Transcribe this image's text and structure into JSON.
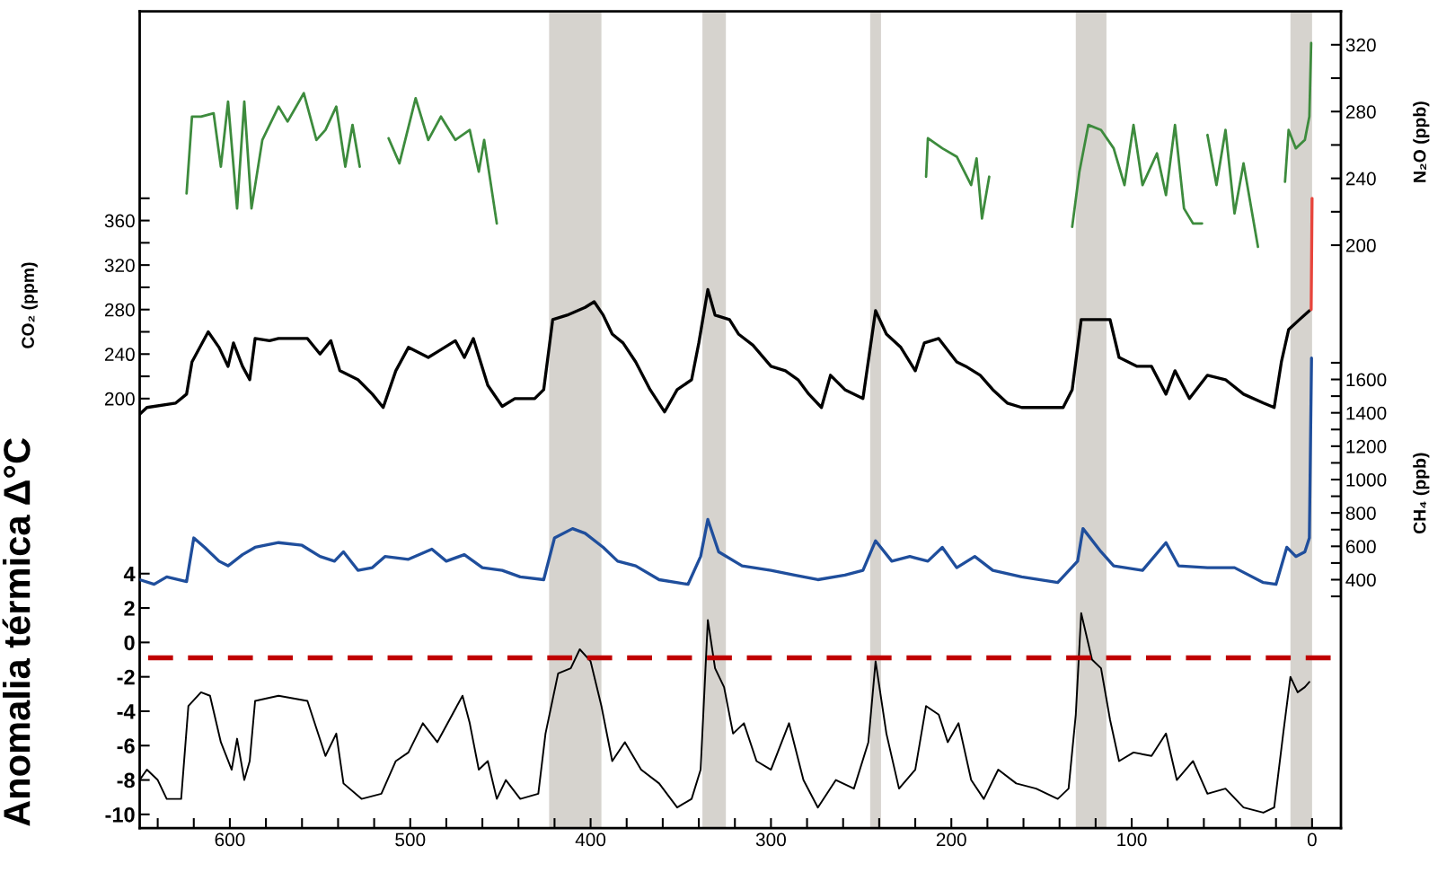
{
  "chart_data": [
    {
      "type": "line",
      "ylabel": "CO₂ (ppm)",
      "y2label": "N₂O (ppb)",
      "y3label": "CH₄ (ppb)",
      "xlim": [
        650,
        -16
      ],
      "xticks": [
        {
          "value": 640,
          "label": null
        },
        {
          "value": 620,
          "label": null
        },
        600,
        {
          "value": 580,
          "label": null
        },
        {
          "value": 560,
          "label": null
        },
        {
          "value": 540,
          "label": null
        },
        {
          "value": 520,
          "label": null
        },
        500,
        {
          "value": 480,
          "label": null
        },
        {
          "value": 460,
          "label": null
        },
        {
          "value": 440,
          "label": null
        },
        {
          "value": 420,
          "label": null
        },
        400,
        {
          "value": 380,
          "label": null
        },
        {
          "value": 360,
          "label": null
        },
        {
          "value": 340,
          "label": null
        },
        {
          "value": 320,
          "label": null
        },
        300,
        {
          "value": 280,
          "label": null
        },
        {
          "value": 260,
          "label": null
        },
        {
          "value": 240,
          "label": null
        },
        {
          "value": 220,
          "label": null
        },
        200,
        {
          "value": 180,
          "label": null
        },
        {
          "value": 160,
          "label": null
        },
        {
          "value": 140,
          "label": null
        },
        {
          "value": 120,
          "label": null
        },
        100,
        {
          "value": 80,
          "label": null
        },
        {
          "value": 60,
          "label": null
        },
        {
          "value": 40,
          "label": null
        },
        {
          "value": 20,
          "label": null
        },
        0
      ],
      "ylim": [
        -186,
        548
      ],
      "yticks": [
        {
          "value": 380,
          "label": null
        },
        360,
        {
          "value": 340,
          "label": null
        },
        320,
        {
          "value": 300,
          "label": null
        },
        280,
        {
          "value": 260,
          "label": null
        },
        240,
        {
          "value": 220,
          "label": null
        },
        200
      ],
      "y2lim": [
        -149,
        340
      ],
      "y2ticks": [
        320,
        {
          "value": 300,
          "label": null
        },
        280,
        {
          "value": 260,
          "label": null
        },
        240,
        {
          "value": 220,
          "label": null
        },
        200
      ],
      "y3lim": [
        -1089,
        3806
      ],
      "y3ticks": [
        {
          "value": 1700,
          "label": null
        },
        1600,
        {
          "value": 1500,
          "label": null
        },
        1400,
        {
          "value": 1300,
          "label": null
        },
        1200,
        {
          "value": 1100,
          "label": null
        },
        1000,
        {
          "value": 900,
          "label": null
        },
        800,
        {
          "value": 700,
          "label": null
        },
        600,
        {
          "value": 500,
          "label": null
        },
        400,
        {
          "value": 300,
          "label": null
        }
      ],
      "grid": false,
      "bands": [
        {
          "axis": "x",
          "from": 423,
          "to": 394,
          "color": "#d6d3ce"
        },
        {
          "axis": "x",
          "from": 338,
          "to": 325,
          "color": "#d6d3ce"
        },
        {
          "axis": "x",
          "from": 245,
          "to": 239,
          "color": "#d6d3ce"
        },
        {
          "axis": "x",
          "from": 131,
          "to": 114,
          "color": "#d6d3ce"
        },
        {
          "axis": "x",
          "from": 12,
          "to": 0,
          "color": "#d6d3ce"
        }
      ],
      "series": [
        {
          "axis": "y2",
          "color": "#3d8b3d",
          "x": [
            624,
            621,
            616,
            609,
            605,
            601,
            596,
            592,
            588,
            582,
            573,
            568,
            559,
            552,
            547,
            541,
            536,
            532,
            528,
            520,
            512,
            506,
            497,
            490,
            483,
            475,
            467,
            462,
            459,
            452,
            300,
            214,
            213,
            205,
            197,
            189,
            186,
            183,
            179,
            150,
            133,
            129,
            124,
            117,
            110,
            104,
            99,
            94,
            86,
            81,
            76,
            71,
            66,
            61,
            60,
            58,
            53,
            48,
            43,
            38,
            30,
            22,
            15,
            13,
            9,
            4,
            1.5,
            0.5
          ],
          "values": [
            231,
            277,
            277,
            279,
            247,
            286,
            222,
            286,
            222,
            263,
            283,
            274,
            291,
            263,
            269,
            283,
            247,
            272,
            247,
            null,
            264,
            249,
            288,
            263,
            277,
            263,
            269,
            244,
            263,
            213,
            null,
            241,
            264,
            258,
            253,
            236,
            252,
            216,
            241,
            null,
            211,
            244,
            272,
            269,
            258,
            236,
            272,
            236,
            255,
            230,
            272,
            222,
            213,
            213,
            null,
            266,
            236,
            269,
            219,
            249,
            199,
            null,
            238,
            269,
            258,
            263,
            277,
            321
          ]
        },
        {
          "axis": "y",
          "color": "#000000",
          "x": [
            650,
            646,
            630,
            624,
            621,
            612,
            606,
            601,
            598,
            593,
            589,
            586,
            578,
            573,
            557,
            550,
            544,
            539,
            529,
            521,
            515,
            508,
            501,
            490,
            485,
            475,
            470,
            465,
            457,
            449,
            442,
            431,
            426,
            421,
            413,
            403,
            398,
            393,
            388,
            382,
            375,
            367,
            359,
            352,
            344,
            340,
            335,
            331,
            323,
            318,
            310,
            300,
            292,
            285,
            279,
            272,
            267,
            259,
            249,
            242,
            236,
            228,
            220,
            215,
            207,
            197,
            192,
            184,
            177,
            169,
            161,
            151,
            138,
            133,
            128,
            120,
            112,
            107,
            97,
            89,
            81,
            76,
            68,
            58,
            48,
            38,
            27,
            21,
            17,
            13,
            7,
            1.5
          ],
          "values": [
            186,
            192,
            196,
            204,
            233,
            260,
            246,
            229,
            250,
            229,
            217,
            254,
            252,
            254,
            254,
            240,
            252,
            225,
            217,
            204,
            192,
            225,
            246,
            237,
            242,
            252,
            237,
            254,
            212,
            193,
            200,
            200,
            208,
            271,
            275,
            282,
            287,
            275,
            258,
            250,
            233,
            208,
            188,
            208,
            217,
            250,
            298,
            275,
            271,
            258,
            248,
            229,
            225,
            217,
            204,
            192,
            221,
            208,
            200,
            279,
            258,
            246,
            225,
            250,
            254,
            233,
            229,
            221,
            208,
            196,
            192,
            192,
            192,
            208,
            271,
            271,
            271,
            237,
            229,
            229,
            204,
            225,
            200,
            221,
            217,
            204,
            196,
            192,
            233,
            262,
            271,
            279
          ]
        },
        {
          "axis": "y",
          "color": "#e8453c",
          "x": [
            0.5,
            0
          ],
          "values": [
            280,
            380
          ]
        },
        {
          "axis": "y3",
          "color": "#1f4e9c",
          "x": [
            650,
            642,
            635,
            624,
            620,
            614,
            606,
            601,
            593,
            586,
            573,
            560,
            550,
            542,
            537,
            529,
            521,
            514,
            501,
            488,
            480,
            470,
            460,
            449,
            439,
            426,
            420,
            410,
            403,
            393,
            385,
            375,
            362,
            346,
            339,
            335,
            329,
            316,
            300,
            287,
            274,
            259,
            249,
            242,
            233,
            223,
            213,
            205,
            197,
            187,
            177,
            161,
            141,
            130,
            127,
            117,
            110,
            94,
            81,
            74,
            58,
            43,
            27,
            20,
            14,
            9,
            4,
            1.5,
            0.3
          ],
          "values": [
            400,
            372,
            417,
            389,
            650,
            594,
            511,
            483,
            550,
            594,
            622,
            606,
            539,
            511,
            567,
            456,
            472,
            539,
            522,
            583,
            511,
            550,
            472,
            456,
            417,
            400,
            650,
            706,
            678,
            594,
            511,
            483,
            400,
            372,
            539,
            761,
            567,
            483,
            456,
            428,
            400,
            428,
            456,
            633,
            511,
            539,
            511,
            594,
            472,
            539,
            456,
            417,
            383,
            511,
            706,
            567,
            483,
            456,
            622,
            483,
            472,
            472,
            383,
            372,
            594,
            539,
            567,
            650,
            1728
          ]
        }
      ]
    },
    {
      "type": "line",
      "ylabel": "Anomalia térmica Δ°C",
      "tick_labels": "y",
      "grid": false,
      "xlim": [
        650,
        -16
      ],
      "ylim": [
        -10.8,
        36.7
      ],
      "yticks": [
        4,
        2,
        0,
        -2,
        -4,
        -6,
        -8,
        -10
      ],
      "ref_lines": [
        {
          "axis": "y",
          "value": -0.9,
          "color": "#c00000",
          "line_style": "dashed"
        }
      ],
      "series": [
        {
          "color": "#000000",
          "x": [
            650,
            646,
            640,
            635,
            627,
            623,
            616,
            611,
            605,
            599,
            596,
            592,
            589,
            586,
            573,
            557,
            547,
            541,
            537,
            527,
            516,
            508,
            501,
            493,
            485,
            471,
            467,
            462,
            457,
            452,
            447,
            439,
            429,
            425,
            418,
            411,
            406,
            400,
            394,
            388,
            381,
            372,
            362,
            352,
            344,
            339,
            335,
            331,
            326,
            321,
            315,
            308,
            300,
            290,
            282,
            274,
            264,
            254,
            246,
            242,
            236,
            229,
            220,
            214,
            207,
            202,
            196,
            189,
            182,
            174,
            164,
            153,
            141,
            135,
            131,
            128,
            122,
            117,
            112,
            107,
            99,
            89,
            81,
            75,
            66,
            58,
            48,
            38,
            27,
            21,
            16,
            12,
            8,
            4,
            1.5
          ],
          "values": [
            -8.0,
            -7.4,
            -8.0,
            -9.1,
            -9.1,
            -3.7,
            -2.9,
            -3.1,
            -5.8,
            -7.4,
            -5.6,
            -8.0,
            -6.9,
            -3.4,
            -3.1,
            -3.4,
            -6.6,
            -5.3,
            -8.2,
            -9.1,
            -8.8,
            -6.9,
            -6.4,
            -4.7,
            -5.8,
            -3.1,
            -4.7,
            -7.4,
            -6.9,
            -9.1,
            -8.0,
            -9.1,
            -8.8,
            -5.3,
            -1.8,
            -1.5,
            -0.4,
            -1.1,
            -3.7,
            -6.9,
            -5.8,
            -7.4,
            -8.2,
            -9.6,
            -9.1,
            -7.4,
            1.3,
            -1.5,
            -2.6,
            -5.3,
            -4.7,
            -6.9,
            -7.4,
            -4.7,
            -8.0,
            -9.6,
            -8.0,
            -8.5,
            -5.8,
            -1.1,
            -5.3,
            -8.5,
            -7.4,
            -3.7,
            -4.2,
            -5.8,
            -4.7,
            -8.0,
            -9.1,
            -7.4,
            -8.2,
            -8.5,
            -9.1,
            -8.5,
            -4.2,
            1.7,
            -1.0,
            -1.5,
            -4.5,
            -6.9,
            -6.4,
            -6.6,
            -5.3,
            -8.0,
            -6.9,
            -8.8,
            -8.5,
            -9.6,
            -9.9,
            -9.6,
            -5.3,
            -2.0,
            -2.9,
            -2.6,
            -2.3
          ]
        }
      ]
    }
  ]
}
